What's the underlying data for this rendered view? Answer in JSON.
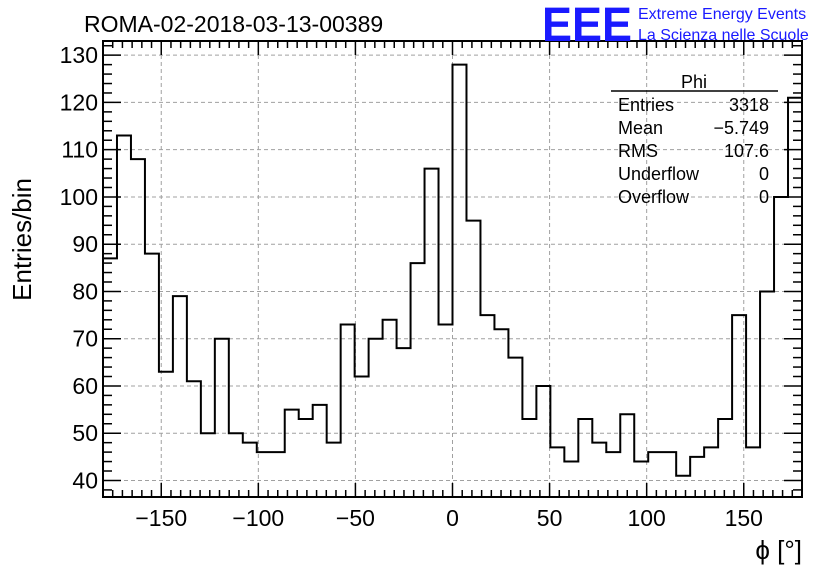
{
  "chart_data": {
    "type": "bar",
    "title": "ROMA-02-2018-03-13-00389",
    "xlabel": "ϕ [°]",
    "ylabel": "Entries/bin",
    "xlim": [
      -180,
      180
    ],
    "ylim": [
      36.5,
      133
    ],
    "bin_width": 7.2,
    "x_ticks": [
      -150,
      -100,
      -50,
      0,
      50,
      100,
      150
    ],
    "y_ticks": [
      40,
      50,
      60,
      70,
      80,
      90,
      100,
      110,
      120,
      130
    ],
    "grid": true,
    "values": [
      87,
      113,
      108,
      88,
      63,
      79,
      61,
      50,
      70,
      50,
      48,
      46,
      46,
      55,
      53,
      56,
      48,
      73,
      62,
      70,
      74,
      68,
      86,
      106,
      73,
      128,
      95,
      75,
      72,
      66,
      53,
      60,
      47,
      44,
      53,
      48,
      46,
      54,
      44,
      46,
      46,
      41,
      45,
      47,
      53,
      75,
      47,
      80,
      100,
      121
    ],
    "legend": {
      "position": "top-right",
      "title": "Phi",
      "rows": [
        {
          "label": "Entries",
          "value": "3318"
        },
        {
          "label": "Mean",
          "value": "−5.749"
        },
        {
          "label": "RMS",
          "value": "107.6"
        },
        {
          "label": "Underflow",
          "value": "0"
        },
        {
          "label": "Overflow",
          "value": "0"
        }
      ]
    }
  },
  "logo": {
    "mark": "EEE",
    "line1": "Extreme Energy Events",
    "line2": "La Scienza nelle Scuole"
  },
  "colors": {
    "histogram_line": "#000000",
    "grid": "#a0a0a0",
    "logo": "#1a1aff"
  }
}
